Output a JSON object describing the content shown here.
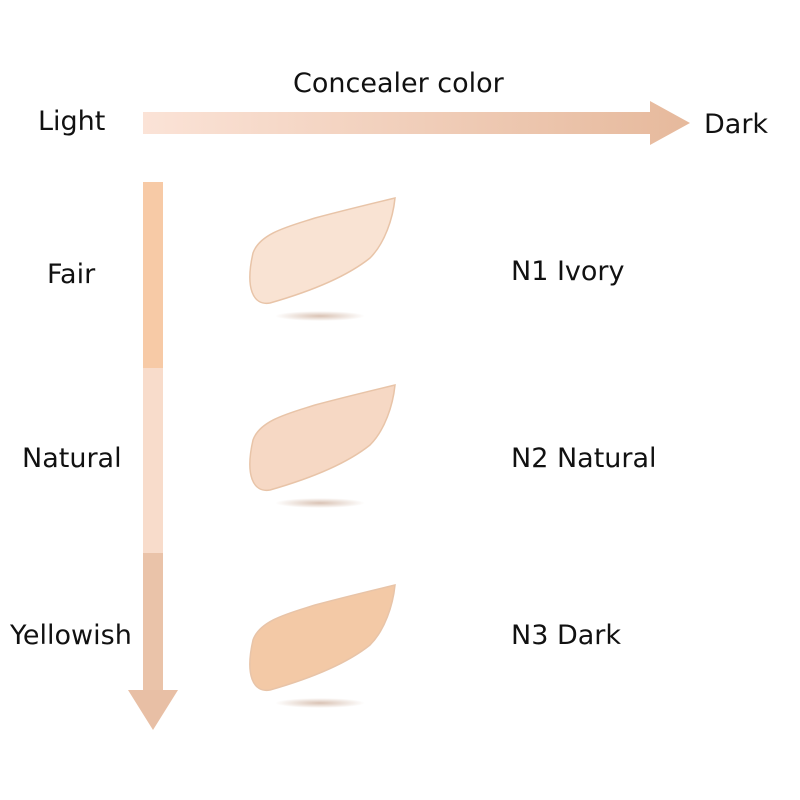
{
  "header": {
    "title": "Concealer color",
    "start_label": "Light",
    "end_label": "Dark"
  },
  "skin_tones": [
    {
      "label": "Fair",
      "color": "#f7caa6"
    },
    {
      "label": "Natural",
      "color": "#f8dccb"
    },
    {
      "label": "Yellowish",
      "color": "#eac3a9"
    }
  ],
  "shades": [
    {
      "name": "N1 Ivory",
      "color": "#f9e3d3"
    },
    {
      "name": "N2 Natural",
      "color": "#f6d8c4"
    },
    {
      "name": "N3 Dark",
      "color": "#f3c9a6"
    }
  ],
  "colors": {
    "arrow_start": "#fbe3d7",
    "arrow_end": "#e6b99c",
    "down_arrow_head": "#e8bfa5"
  }
}
